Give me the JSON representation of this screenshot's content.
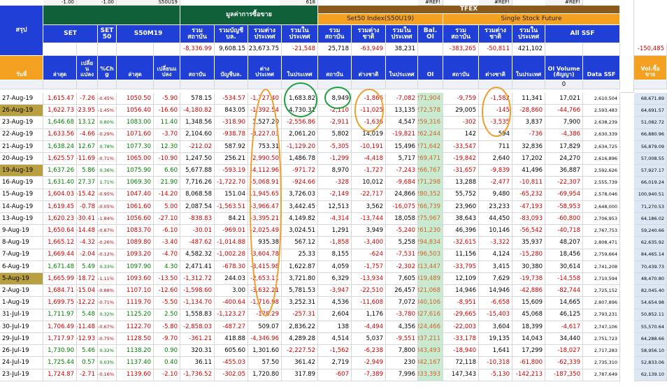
{
  "top_row": [
    "-1.00",
    "-1.00",
    "S50U19",
    "618",
    "#REF!",
    "#REF!",
    "#REF!"
  ],
  "groups": {
    "summary": "สรุป",
    "trading_value": "มูลค่าการซื้อขาย",
    "tfex": "TFEX",
    "set50_index": "Set50 Index(S50U19)",
    "ssf": "Single Stock Future"
  },
  "headers": [
    "SET",
    "SET 50",
    "S50M19",
    "รวม สถาบัน",
    "รวมบัญชี บล.",
    "รวมต่าง ประเทศ",
    "รวมใน ประเทศ",
    "รวม สถาบัน",
    "รวมต่าง ชาติ",
    "รวมใน ประเทศ",
    "Bal. OI",
    "รวม สถาบัน",
    "รวมต่าง ชาติ",
    "รวมใน ประเทศ",
    "All SSF"
  ],
  "totals": [
    "-8,336.99",
    "9,608.15",
    "23,673.75",
    "-21,548",
    "25,718",
    "-63,949",
    "38,231",
    "-383,265",
    "-50,811",
    "421,102",
    "-150,485"
  ],
  "columns": [
    "วันที่",
    "ล่าสุด",
    "เปลี่ย น แปลง",
    "%Ch g",
    "ล่าสุด",
    "เปลี่ยนแ ปลง",
    "สถาบัน",
    "บัญชีบล.",
    "ต่าง ประเทศ",
    "ในประเทศ",
    "สถาบัน",
    "ต่างชาติ",
    "ในประเทศ",
    "OI",
    "สถาบัน",
    "ต่างชาติ",
    "ในประเทศ",
    "OI Volume (สัญญา)",
    "Data SSF",
    "Vol.ซื้อ ขาย"
  ],
  "filter_value": "0",
  "rows": [
    [
      "27-Aug-19",
      "1,615.47",
      "-7.26",
      "-0.45%",
      "1050.50",
      "-5.90",
      "578.15",
      "-534.57",
      "-1,727.40",
      "1,683.82",
      "8,949",
      "-1,866",
      "-7,082",
      "271,904",
      "-9,759",
      "-1,582",
      "11,341",
      "17,021",
      "2,610,504",
      "68,671.89"
    ],
    [
      "26-Aug-19",
      "1,622.73",
      "-23.95",
      "-1.45%",
      "1056.40",
      "-16.60",
      "-4,180.82",
      "843.05",
      "-1,392.54",
      "4,730.31",
      "-2,110",
      "-11,025",
      "13,135",
      "272,578",
      "29,005",
      "-145",
      "-28,860",
      "-44,766",
      "2,593,483",
      "64,691.57"
    ],
    [
      "23-Aug-19",
      "1,646.68",
      "13.12",
      "0.80%",
      "1083.00",
      "11.40",
      "1,348.56",
      "-318.90",
      "1,527.20",
      "-2,556.86",
      "-2,911",
      "-1,636",
      "4,547",
      "259,316",
      "-302",
      "-3,535",
      "3,837",
      "7,900",
      "2,638,239",
      "51,082.72"
    ],
    [
      "22-Aug-19",
      "1,633.56",
      "-4.66",
      "-0.29%",
      "1071.60",
      "-3.70",
      "2,104.60",
      "-938.78",
      "-3,227.03",
      "2,061.20",
      "5,802",
      "14,019",
      "-19,821",
      "262,244",
      "142",
      "594",
      "-736",
      "-4,386",
      "2,630,339",
      "66,880.96"
    ],
    [
      "21-Aug-19",
      "1,638.24",
      "12.67",
      "0.78%",
      "1077.30",
      "12.30",
      "-212.02",
      "587.92",
      "753.31",
      "-1,129.20",
      "-5,305",
      "-10,191",
      "15,496",
      "271,642",
      "-33,547",
      "711",
      "32,836",
      "17,829",
      "2,634,725",
      "56,879.09"
    ],
    [
      "20-Aug-19",
      "1,625.57",
      "-11.69",
      "-0.71%",
      "1065.00",
      "-10.90",
      "1,247.50",
      "256.21",
      "-2,990.50",
      "1,486.78",
      "-1,299",
      "-4,418",
      "5,717",
      "269,471",
      "-19,842",
      "2,640",
      "17,202",
      "24,270",
      "2,616,896",
      "57,008.55"
    ],
    [
      "19-Aug-19",
      "1,637.26",
      "5.86",
      "0.36%",
      "1075.90",
      "6.60",
      "5,677.88",
      "-593.19",
      "-4,112.96",
      "-971.72",
      "8,970",
      "-1,727",
      "-7,243",
      "266,767",
      "-31,657",
      "-9,839",
      "41,496",
      "36,887",
      "2,592,626",
      "57,927.17"
    ],
    [
      "16-Aug-19",
      "1,631.40",
      "27.37",
      "1.71%",
      "1069.30",
      "21.90",
      "7,716.26",
      "-1,722.70",
      "-5,068.91",
      "-924.66",
      "-328",
      "10,012",
      "-9,684",
      "271,298",
      "13,288",
      "-2,477",
      "-10,811",
      "-22,307",
      "2,555,739",
      "66,019.24"
    ],
    [
      "15-Aug-19",
      "1,604.03",
      "-15.42",
      "-0.95%",
      "1047.40",
      "-14.20",
      "8,068.58",
      "151.04",
      "-11,945.65",
      "3,726.03",
      "-2,149",
      "-22,717",
      "24,866",
      "280,352",
      "55,752",
      "9,480",
      "-65,232",
      "-69,954",
      "2,578,046",
      "100,940.51"
    ],
    [
      "14-Aug-19",
      "1,619.45",
      "-0.78",
      "-0.05%",
      "1061.60",
      "5.00",
      "2,087.54",
      "-1,563.51",
      "-3,966.47",
      "3,442.45",
      "12,513",
      "3,562",
      "-16,075",
      "266,739",
      "23,960",
      "23,233",
      "-47,193",
      "-58,953",
      "2,648,000",
      "71,270.53"
    ],
    [
      "13-Aug-19",
      "1,620.23",
      "-30.41",
      "-1.84%",
      "1056.60",
      "-27.10",
      "-838.83",
      "84.21",
      "-3,395.21",
      "4,149.82",
      "-4,314",
      "-13,744",
      "18,058",
      "275,967",
      "38,643",
      "44,450",
      "-83,093",
      "-60,800",
      "2,706,953",
      "64,186.02"
    ],
    [
      "9-Aug-19",
      "1,650.64",
      "-14.48",
      "-0.87%",
      "1083.70",
      "-6.10",
      "-30.01",
      "-969.01",
      "-2,025.49",
      "3,024.51",
      "1,291",
      "3,949",
      "-5,240",
      "261,230",
      "46,396",
      "10,146",
      "-56,542",
      "-40,718",
      "2,767,753",
      "59,240.66"
    ],
    [
      "8-Aug-19",
      "1,665.12",
      "-4.32",
      "-0.26%",
      "1089.80",
      "-3.40",
      "-487.62",
      "-1,014.88",
      "935.38",
      "567.12",
      "-1,858",
      "-3,400",
      "5,258",
      "294,834",
      "-32,615",
      "-3,322",
      "35,937",
      "48,207",
      "2,808,471",
      "62,635.92"
    ],
    [
      "7-Aug-19",
      "1,669.44",
      "-2.04",
      "-0.12%",
      "1093.20",
      "-4.70",
      "4,582.32",
      "-1,002.28",
      "-3,604.78",
      "25.33",
      "8,155",
      "-624",
      "-7,531",
      "296,503",
      "11,156",
      "4,124",
      "-15,280",
      "18,456",
      "2,759,664",
      "84,465.14"
    ],
    [
      "6-Aug-19",
      "1,671.48",
      "5.49",
      "0.33%",
      "1097.90",
      "4.30",
      "2,471.41",
      "-678.30",
      "-3,415.98",
      "1,622.87",
      "4,059",
      "-1,757",
      "-2,302",
      "313,447",
      "-33,795",
      "3,415",
      "30,380",
      "30,614",
      "2,741,208",
      "70,439.73"
    ],
    [
      "5-Aug-19",
      "1,665.99",
      "-18.72",
      "-1.11%",
      "1093.60",
      "-13.50",
      "-1,312.72",
      "244.03",
      "-2,653.11",
      "3,721.80",
      "6,329",
      "-13,934",
      "7,605",
      "319,489",
      "12,109",
      "7,629",
      "-19,738",
      "-14,558",
      "2,710,594",
      "48,470.80"
    ],
    [
      "2-Aug-19",
      "1,684.71",
      "-15.04",
      "-0.88%",
      "1107.10",
      "-12.60",
      "-1,598.60",
      "3.00",
      "-3,632.21",
      "5,781.53",
      "-3,947",
      "-22,510",
      "26,457",
      "321,068",
      "14,946",
      "14,946",
      "-42,886",
      "-82,744",
      "2,725,152",
      "82,045.40"
    ],
    [
      "1-Aug-19",
      "1,699.75",
      "-12.22",
      "-0.71%",
      "1119.70",
      "-5.50",
      "-1,134.70",
      "-400.64",
      "-1,716.98",
      "3,252.31",
      "4,536",
      "-11,608",
      "7,072",
      "340,106",
      "-8,951",
      "-6,658",
      "15,609",
      "14,665",
      "2,807,896",
      "54,654.98"
    ],
    [
      "31-Jul-19",
      "1,711.97",
      "5.48",
      "0.32%",
      "1125.20",
      "2.50",
      "1,558.83",
      "-1,123.27",
      "-178.29",
      "-257.31",
      "2,604",
      "1,176",
      "-3,780",
      "327,616",
      "-29,665",
      "-15,403",
      "45,068",
      "46,125",
      "2,793,231",
      "50,852.11"
    ],
    [
      "30-Jul-19",
      "1,706.49",
      "-11.48",
      "-0.67%",
      "1122.70",
      "-5.80",
      "-2,858.03",
      "-487.27",
      "509.07",
      "2,836.22",
      "138",
      "-4,494",
      "4,356",
      "324,466",
      "-22,003",
      "3,604",
      "18,399",
      "-4,617",
      "2,747,106",
      "55,570.64"
    ],
    [
      "29-Jul-19",
      "1,717.97",
      "-12.93",
      "-0.75%",
      "1128.50",
      "-9.70",
      "-361.21",
      "418.88",
      "-4,346.96",
      "4,289.28",
      "4,514",
      "5,037",
      "-9,551",
      "337,211",
      "-33,178",
      "19,135",
      "14,043",
      "34,440",
      "2,751,723",
      "64,288.66"
    ],
    [
      "26-Jul-19",
      "1,730.90",
      "5.46",
      "0.32%",
      "1138.20",
      "0.90",
      "320.31",
      "605.60",
      "1,301.60",
      "-2,227.52",
      "-1,562",
      "-6,238",
      "7,800",
      "343,493",
      "-18,940",
      "1,641",
      "17,299",
      "-18,027",
      "2,717,283",
      "58,956.10"
    ],
    [
      "24-Jul-19",
      "1,725.44",
      "0.57",
      "0.03%",
      "1137.40",
      "0.40",
      "36.11",
      "-455.03",
      "57.50",
      "361.42",
      "2,719",
      "-2,949",
      "230",
      "342,167",
      "72,118",
      "-10,318",
      "-61,800",
      "-62,339",
      "2,735,310",
      "52,833.06"
    ],
    [
      "23-Jul-19",
      "1,724.87",
      "-2.71",
      "-0.16%",
      "1139.60",
      "-2.10",
      "-1,736.52",
      "-302.05",
      "1,720.80",
      "317.89",
      "-607",
      "-7,389",
      "7,996",
      "333,393",
      "147,343",
      "-5,130",
      "-142,213",
      "-187,350",
      "2,787,649",
      "62,139.10"
    ]
  ]
}
